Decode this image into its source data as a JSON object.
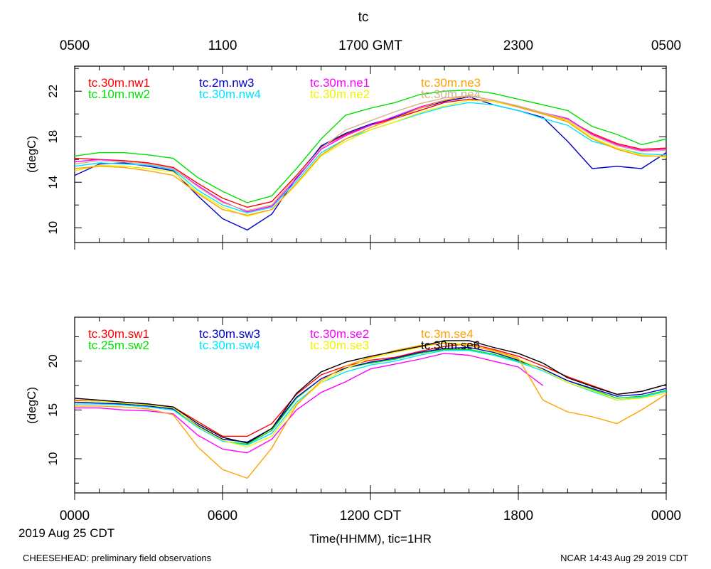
{
  "header": {
    "title": "tc",
    "top_axis_labels": [
      "0500",
      "1100",
      "1700 GMT",
      "2300",
      "0500"
    ]
  },
  "bottom_axis": {
    "tick_labels": [
      "0000",
      "0600",
      "1200 CDT",
      "1800",
      "0000"
    ],
    "date_label": "2019 Aug 25 CDT",
    "xlabel": "Time(HHMM), tic=1HR"
  },
  "footer": {
    "left": "CHEESEHEAD: preliminary field observations",
    "right": "NCAR 14:43 Aug 29 2019 CDT"
  },
  "colors": {
    "red": "#ff0000",
    "green": "#00e000",
    "blue": "#0000cc",
    "cyan": "#00e5ff",
    "magenta": "#ff00ff",
    "yellow": "#f2f200",
    "orange": "#ffa000",
    "tan": "#d2b48c",
    "black": "#000000"
  },
  "chart_data": [
    {
      "type": "line",
      "ylabel": "(degC)",
      "yticks": [
        10,
        14,
        18,
        22
      ],
      "ylim": [
        8.7,
        24.2
      ],
      "xlim": [
        0,
        24
      ],
      "legend_placement": "top, inside plot",
      "x_hours": [
        0,
        1,
        2,
        3,
        4,
        5,
        6,
        7,
        8,
        9,
        10,
        11,
        12,
        13,
        14,
        15,
        16,
        17,
        18,
        19,
        20,
        21,
        22,
        23,
        24
      ],
      "series": [
        {
          "name": "tc.30m.nw1",
          "color": "#ff0000",
          "values": [
            16.1,
            16.0,
            15.9,
            15.7,
            15.3,
            13.9,
            12.6,
            11.8,
            12.3,
            14.6,
            17.1,
            18.2,
            19.0,
            19.6,
            20.3,
            21.0,
            21.3,
            21.1,
            20.6,
            20.0,
            19.5,
            18.3,
            17.4,
            16.9,
            17.0
          ]
        },
        {
          "name": "tc.10m.nw2",
          "color": "#00e000",
          "values": [
            16.3,
            16.6,
            16.6,
            16.4,
            16.1,
            14.4,
            13.2,
            12.2,
            12.8,
            15.2,
            17.8,
            19.9,
            20.5,
            21.0,
            21.7,
            22.0,
            22.1,
            21.8,
            21.3,
            20.8,
            20.3,
            18.9,
            18.2,
            17.3,
            17.8
          ]
        },
        {
          "name": "tc.2m.nw3",
          "color": "#0000cc",
          "values": [
            14.6,
            15.6,
            15.7,
            15.4,
            15.0,
            12.8,
            10.8,
            9.8,
            11.2,
            14.4,
            17.2,
            18.3,
            19.1,
            19.7,
            20.5,
            21.1,
            21.5,
            20.8,
            20.3,
            19.7,
            17.6,
            15.2,
            15.4,
            15.2,
            16.6
          ]
        },
        {
          "name": "tc.30m.nw4",
          "color": "#00e5ff",
          "values": [
            15.4,
            15.7,
            15.6,
            15.5,
            15.1,
            13.3,
            12.0,
            11.3,
            11.8,
            14.1,
            16.6,
            17.8,
            18.6,
            19.3,
            20.0,
            20.6,
            21.0,
            20.8,
            20.3,
            19.6,
            19.0,
            17.6,
            17.0,
            16.5,
            16.4
          ]
        },
        {
          "name": "tc.30m.ne1",
          "color": "#ff00ff",
          "values": [
            15.8,
            16.0,
            15.8,
            15.6,
            15.2,
            13.7,
            12.3,
            11.4,
            11.9,
            14.3,
            16.9,
            18.1,
            19.0,
            19.8,
            20.6,
            21.2,
            21.6,
            21.2,
            20.7,
            20.1,
            19.6,
            18.2,
            17.3,
            16.8,
            16.9
          ]
        },
        {
          "name": "tc.30m.ne2",
          "color": "#f2f200",
          "values": [
            15.0,
            15.5,
            15.4,
            15.2,
            14.9,
            13.1,
            11.8,
            11.0,
            11.6,
            13.8,
            16.3,
            17.6,
            18.6,
            19.3,
            20.1,
            20.7,
            21.2,
            21.1,
            20.6,
            20.0,
            19.4,
            17.9,
            17.0,
            16.4,
            16.2
          ]
        },
        {
          "name": "tc.30m.ne3",
          "color": "#ffa000",
          "values": [
            15.2,
            15.4,
            15.3,
            15.0,
            14.6,
            13.0,
            11.6,
            11.1,
            11.6,
            13.9,
            16.4,
            17.8,
            18.8,
            19.6,
            20.5,
            21.2,
            21.6,
            21.2,
            20.6,
            20.0,
            19.3,
            17.8,
            16.9,
            16.3,
            16.3
          ]
        },
        {
          "name": "tc.30m.ne4",
          "color": "#d2b48c",
          "values": [
            15.6,
            15.9,
            15.8,
            15.6,
            15.2,
            13.6,
            12.2,
            11.5,
            12.0,
            14.5,
            17.0,
            18.6,
            19.4,
            20.2,
            20.9,
            21.4,
            21.6,
            21.2,
            20.7,
            20.1,
            19.5,
            18.1,
            17.2,
            16.7,
            16.8
          ]
        }
      ]
    },
    {
      "type": "line",
      "ylabel": "(degC)",
      "yticks": [
        10,
        15,
        20
      ],
      "ylim": [
        6.5,
        24.5
      ],
      "xlim": [
        0,
        24
      ],
      "legend_placement": "top, inside plot",
      "x_hours": [
        0,
        1,
        2,
        3,
        4,
        5,
        6,
        7,
        8,
        9,
        10,
        11,
        12,
        13,
        14,
        15,
        16,
        17,
        18,
        19,
        20,
        21,
        22,
        23,
        24
      ],
      "series": [
        {
          "name": "tc.30m.sw1",
          "color": "#ff0000",
          "values": [
            16.0,
            15.9,
            15.8,
            15.6,
            15.3,
            13.8,
            12.3,
            12.3,
            13.6,
            16.6,
            18.6,
            19.5,
            20.1,
            20.4,
            21.0,
            21.5,
            21.8,
            21.2,
            20.5,
            19.5,
            18.4,
            17.5,
            16.6,
            16.9,
            17.6
          ]
        },
        {
          "name": "tc.25m.sw2",
          "color": "#00e000",
          "values": [
            15.8,
            15.7,
            15.5,
            15.3,
            15.0,
            13.3,
            11.8,
            11.5,
            12.9,
            16.2,
            18.2,
            19.3,
            19.8,
            20.2,
            20.8,
            21.2,
            21.2,
            20.7,
            20.0,
            19.2,
            18.0,
            17.1,
            16.2,
            16.4,
            17.0
          ]
        },
        {
          "name": "tc.30m.sw3",
          "color": "#0000cc",
          "values": [
            15.8,
            15.7,
            15.6,
            15.4,
            15.1,
            13.4,
            12.0,
            11.7,
            13.1,
            16.3,
            18.2,
            19.3,
            19.9,
            20.3,
            20.9,
            21.3,
            21.4,
            20.9,
            20.1,
            19.2,
            18.0,
            17.2,
            16.4,
            16.6,
            17.2
          ]
        },
        {
          "name": "tc.30m.sw4",
          "color": "#00e5ff",
          "values": [
            15.6,
            15.6,
            15.5,
            15.3,
            15.0,
            13.2,
            11.8,
            11.4,
            12.6,
            15.8,
            17.8,
            18.9,
            19.6,
            20.0,
            20.6,
            21.1,
            21.1,
            20.6,
            19.9,
            19.0,
            17.8,
            16.9,
            16.0,
            16.3,
            16.9
          ]
        },
        {
          "name": "tc.30m.se2",
          "color": "#ff00ff",
          "values": [
            15.2,
            15.2,
            15.0,
            14.9,
            14.6,
            12.4,
            11.0,
            10.6,
            12.0,
            15.0,
            16.8,
            17.9,
            19.2,
            19.7,
            20.2,
            20.8,
            20.6,
            20.0,
            19.4,
            17.5,
            null,
            null,
            null,
            null,
            null
          ]
        },
        {
          "name": "tc.30m.se3",
          "color": "#f2f200",
          "values": [
            15.9,
            15.9,
            15.7,
            15.5,
            15.2,
            13.3,
            11.9,
            11.2,
            12.3,
            15.6,
            17.8,
            19.2,
            20.3,
            20.9,
            21.4,
            21.9,
            21.7,
            21.0,
            20.2,
            19.1,
            17.8,
            17.0,
            16.0,
            16.2,
            16.7
          ]
        },
        {
          "name": "tc.3m.se4",
          "color": "#ffa000",
          "values": [
            15.4,
            15.4,
            15.3,
            15.1,
            14.5,
            11.2,
            8.9,
            8.0,
            11.1,
            15.5,
            18.0,
            19.5,
            20.4,
            21.1,
            21.6,
            21.8,
            21.6,
            21.1,
            20.3,
            16.0,
            14.8,
            14.3,
            13.6,
            15.0,
            16.6
          ]
        },
        {
          "name": "tc.30m.se6",
          "color": "#000000",
          "values": [
            16.2,
            16.0,
            15.8,
            15.6,
            15.3,
            13.6,
            12.2,
            11.6,
            13.1,
            16.7,
            18.9,
            19.9,
            20.5,
            21.0,
            21.5,
            22.1,
            22.1,
            21.4,
            20.8,
            19.8,
            18.3,
            17.4,
            16.6,
            16.9,
            17.6
          ]
        }
      ]
    }
  ]
}
